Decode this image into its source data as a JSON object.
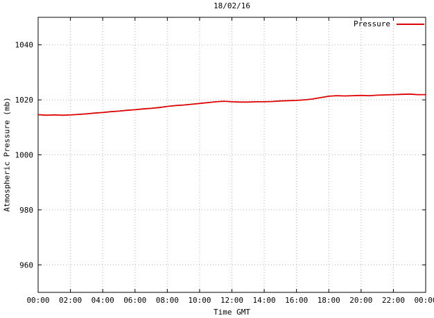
{
  "chart_data": {
    "type": "line",
    "title": "18/02/16",
    "xlabel": "Time GMT",
    "ylabel": "Atmospheric Pressure (mb)",
    "x_tick_labels": [
      "00:00",
      "02:00",
      "04:00",
      "06:00",
      "08:00",
      "10:00",
      "12:00",
      "14:00",
      "16:00",
      "18:00",
      "20:00",
      "22:00",
      "00:00"
    ],
    "x_tick_hours": [
      0,
      2,
      4,
      6,
      8,
      10,
      12,
      14,
      16,
      18,
      20,
      22,
      24
    ],
    "y_ticks": [
      960,
      980,
      1000,
      1020,
      1040
    ],
    "ylim": [
      950,
      1050
    ],
    "xlim_hours": [
      0,
      24
    ],
    "grid": true,
    "legend_position": "top-right",
    "series": [
      {
        "name": "Pressure",
        "color": "#dd0000",
        "x_hours": [
          0,
          0.5,
          1,
          1.5,
          2,
          2.5,
          3,
          3.5,
          4,
          4.5,
          5,
          5.5,
          6,
          6.5,
          7,
          7.5,
          8,
          8.5,
          9,
          9.5,
          10,
          10.5,
          11,
          11.5,
          12,
          12.5,
          13,
          13.5,
          14,
          14.5,
          15,
          15.5,
          16,
          16.5,
          17,
          17.5,
          18,
          18.5,
          19,
          19.5,
          20,
          20.5,
          21,
          21.5,
          22,
          22.5,
          23,
          23.5,
          24
        ],
        "values": [
          1014.6,
          1014.4,
          1014.5,
          1014.4,
          1014.5,
          1014.7,
          1014.9,
          1015.2,
          1015.4,
          1015.7,
          1015.9,
          1016.2,
          1016.4,
          1016.7,
          1016.9,
          1017.2,
          1017.6,
          1017.9,
          1018.1,
          1018.4,
          1018.7,
          1019.0,
          1019.3,
          1019.5,
          1019.3,
          1019.2,
          1019.2,
          1019.3,
          1019.3,
          1019.4,
          1019.6,
          1019.7,
          1019.8,
          1020.0,
          1020.3,
          1020.8,
          1021.3,
          1021.5,
          1021.4,
          1021.5,
          1021.6,
          1021.5,
          1021.7,
          1021.8,
          1021.9,
          1022.0,
          1022.1,
          1021.9,
          1021.9
        ]
      }
    ],
    "colors": {
      "line": "#dd0000",
      "grid": "#b4b4b4",
      "axis": "#000000",
      "background": "#ffffff"
    }
  }
}
